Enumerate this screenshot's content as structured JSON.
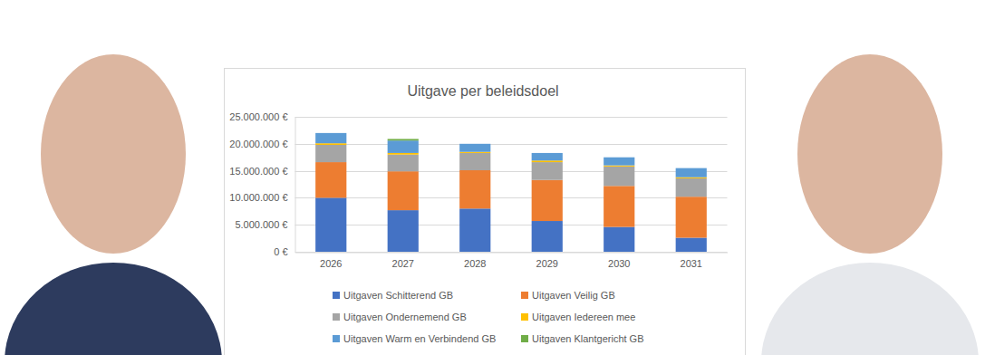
{
  "chart_data": {
    "type": "bar",
    "title": "Uitgave per beleidsdoel",
    "categories": [
      "2026",
      "2027",
      "2028",
      "2029",
      "2030",
      "2031"
    ],
    "series": [
      {
        "name": "Uitgaven Schitterend GB",
        "color": "#4472c4",
        "values": [
          10000000,
          7700000,
          8000000,
          5700000,
          4600000,
          2600000
        ]
      },
      {
        "name": "Uitgaven Veilig GB",
        "color": "#ed7d31",
        "values": [
          6600000,
          7200000,
          7100000,
          7600000,
          7600000,
          7600000
        ]
      },
      {
        "name": "Uitgaven Ondernemend GB",
        "color": "#a5a5a5",
        "values": [
          3200000,
          3100000,
          3200000,
          3300000,
          3600000,
          3400000
        ]
      },
      {
        "name": "Uitgaven Iedereen mee",
        "color": "#ffc000",
        "values": [
          300000,
          300000,
          200000,
          300000,
          200000,
          200000
        ]
      },
      {
        "name": "Uitgaven Warm en Verbindend GB",
        "color": "#5b9bd5",
        "values": [
          1900000,
          2300000,
          1500000,
          1400000,
          1500000,
          1700000
        ]
      },
      {
        "name": "Uitgaven Klantgericht GB",
        "color": "#70ad47",
        "values": [
          0,
          300000,
          0,
          0,
          0,
          0
        ]
      }
    ],
    "ylim": [
      0,
      25000000
    ],
    "yticks": [
      {
        "value": 0,
        "label": "0 €"
      },
      {
        "value": 5000000,
        "label": "5.000.000 €"
      },
      {
        "value": 10000000,
        "label": "10.000.000 €"
      },
      {
        "value": 15000000,
        "label": "15.000.000 €"
      },
      {
        "value": 20000000,
        "label": "20.000.000 €"
      },
      {
        "value": 25000000,
        "label": "25.000.000 €"
      }
    ],
    "grid": true,
    "stacked": true,
    "legend": "bottom"
  }
}
